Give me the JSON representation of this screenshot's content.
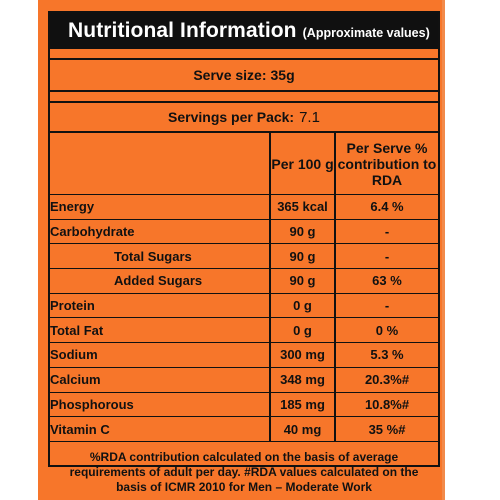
{
  "title": "Nutritional Information",
  "title_note": "(Approximate values)",
  "serve_size": {
    "label": "Serve size:",
    "value": "35g"
  },
  "servings_per_pack": {
    "label": "Servings per Pack:",
    "value": "7.1"
  },
  "columns": {
    "per_100g": "Per 100 g",
    "per_serve": "Per Serve % contribution to RDA"
  },
  "rows": [
    {
      "name": "Energy",
      "amount": "365 kcal",
      "rda": "6.4 %"
    },
    {
      "name": "Carbohydrate",
      "amount": "90 g",
      "rda": "-"
    },
    {
      "name": "Total Sugars",
      "amount": "90 g",
      "rda": "-"
    },
    {
      "name": "Added Sugars",
      "amount": "90 g",
      "rda": "63 %"
    },
    {
      "name": "Protein",
      "amount": "0 g",
      "rda": "-"
    },
    {
      "name": "Total Fat",
      "amount": "0 g",
      "rda": "0 %"
    },
    {
      "name": "Sodium",
      "amount": "300 mg",
      "rda": "5.3 %"
    },
    {
      "name": "Calcium",
      "amount": "348 mg",
      "rda": "20.3%#"
    },
    {
      "name": "Phosphorous",
      "amount": "185 mg",
      "rda": "10.8%#"
    },
    {
      "name": "Vitamin C",
      "amount": "40 mg",
      "rda": "35 %#"
    }
  ],
  "footnote": "%RDA contribution calculated on the basis of average requirements of adult per day. #RDA values calculated on the basis of ICMR 2010 for Men – Moderate Work",
  "colors": {
    "panel": "#f7762a",
    "title_bar": "#101010"
  }
}
